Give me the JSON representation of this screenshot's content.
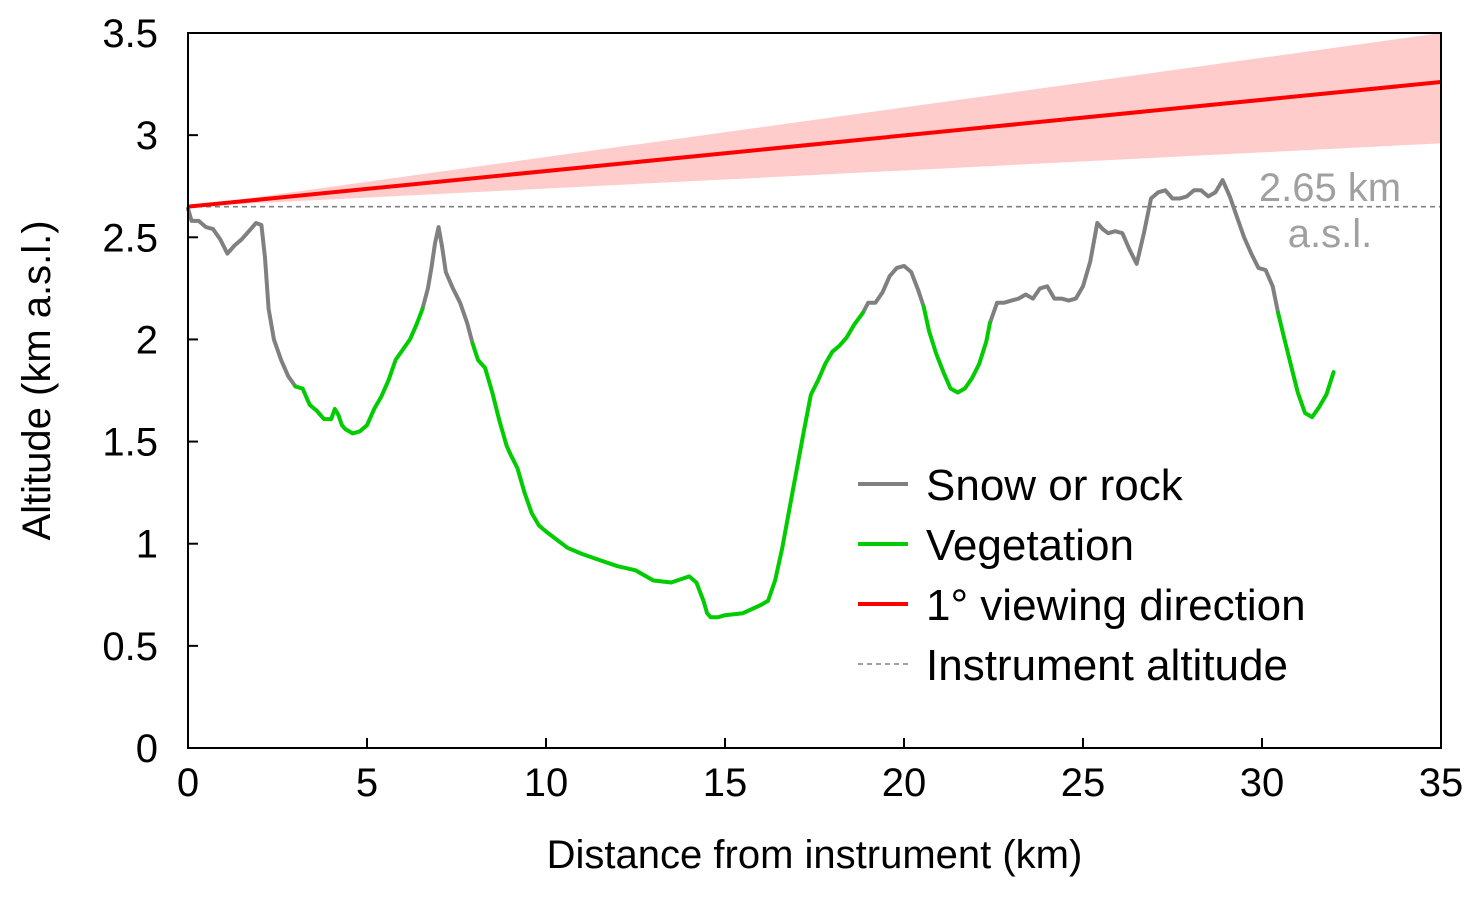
{
  "chart_data": {
    "type": "line",
    "title": "",
    "xlabel": "Distance from instrument (km)",
    "ylabel": "Altitude (km a.s.l.)",
    "xlim": [
      0,
      35
    ],
    "ylim": [
      0,
      3.5
    ],
    "xticks": [
      "0",
      "5",
      "10",
      "15",
      "20",
      "25",
      "30",
      "35"
    ],
    "yticks": [
      "0",
      "0.5",
      "1",
      "1.5",
      "2",
      "2.5",
      "3",
      "3.5"
    ],
    "grid": false,
    "legend_position": "lower-right",
    "legend": [
      {
        "label": "Snow or rock",
        "color": "#808080",
        "style": "solid"
      },
      {
        "label": "Vegetation",
        "color": "#00cc00",
        "style": "solid"
      },
      {
        "label": "1° viewing direction",
        "color": "#ff0000",
        "style": "solid"
      },
      {
        "label": "Instrument altitude",
        "color": "#808080",
        "style": "dashed"
      }
    ],
    "annotation": {
      "line1": "2.65 km",
      "line2": "a.s.l.",
      "color": "#a0a0a0"
    },
    "instrument_altitude": 2.65,
    "viewing_direction": {
      "x": [
        0,
        35
      ],
      "y": [
        2.65,
        3.26
      ],
      "band_upper": [
        2.65,
        3.5
      ],
      "band_lower": [
        2.65,
        2.96
      ],
      "line_color": "#ff0000",
      "band_color": "#ffcccc"
    },
    "series": [
      {
        "name": "Snow or rock",
        "color": "#808080",
        "segments": [
          {
            "x": [
              0.0,
              0.1,
              0.3,
              0.5,
              0.7,
              0.9,
              1.1,
              1.3,
              1.5,
              1.7,
              1.9,
              2.05,
              2.15,
              2.25,
              2.4,
              2.6,
              2.8,
              3.0
            ],
            "y": [
              2.64,
              2.58,
              2.58,
              2.55,
              2.54,
              2.49,
              2.42,
              2.46,
              2.49,
              2.53,
              2.57,
              2.56,
              2.4,
              2.15,
              2.0,
              1.9,
              1.82,
              1.77
            ]
          },
          {
            "x": [
              6.55,
              6.7,
              6.8,
              6.9,
              7.0,
              7.1,
              7.2,
              7.4,
              7.6,
              7.8,
              7.95
            ],
            "y": [
              2.15,
              2.25,
              2.35,
              2.47,
              2.55,
              2.45,
              2.33,
              2.25,
              2.18,
              2.08,
              1.98
            ]
          },
          {
            "x": [
              18.85,
              19.0,
              19.2,
              19.4,
              19.6,
              19.8,
              20.0,
              20.2,
              20.4,
              20.55
            ],
            "y": [
              2.13,
              2.18,
              2.18,
              2.23,
              2.31,
              2.35,
              2.36,
              2.33,
              2.24,
              2.16
            ]
          },
          {
            "x": [
              22.4,
              22.6,
              22.8,
              23.0,
              23.2,
              23.4,
              23.6,
              23.8,
              24.0,
              24.2,
              24.4,
              24.6,
              24.8,
              25.0,
              25.2,
              25.4,
              25.55,
              25.7,
              25.9,
              26.1,
              26.3,
              26.5,
              26.7,
              26.9,
              27.1,
              27.3,
              27.5,
              27.7,
              27.9,
              28.1,
              28.3,
              28.5,
              28.7,
              28.9,
              29.1,
              29.3,
              29.5,
              29.7,
              29.9,
              30.1,
              30.3,
              30.45
            ],
            "y": [
              2.08,
              2.18,
              2.18,
              2.19,
              2.2,
              2.22,
              2.2,
              2.25,
              2.26,
              2.2,
              2.2,
              2.19,
              2.2,
              2.26,
              2.38,
              2.57,
              2.54,
              2.52,
              2.53,
              2.52,
              2.44,
              2.37,
              2.52,
              2.69,
              2.72,
              2.73,
              2.69,
              2.69,
              2.7,
              2.73,
              2.73,
              2.7,
              2.72,
              2.78,
              2.7,
              2.6,
              2.5,
              2.42,
              2.35,
              2.34,
              2.26,
              2.13
            ]
          }
        ]
      },
      {
        "name": "Vegetation",
        "color": "#00cc00",
        "segments": [
          {
            "x": [
              3.0,
              3.2,
              3.4,
              3.6,
              3.8,
              4.0,
              4.1,
              4.2,
              4.3,
              4.4,
              4.6,
              4.8,
              5.0,
              5.2,
              5.4,
              5.6,
              5.8,
              6.0,
              6.2,
              6.4,
              6.55
            ],
            "y": [
              1.77,
              1.76,
              1.68,
              1.65,
              1.61,
              1.61,
              1.66,
              1.63,
              1.58,
              1.56,
              1.54,
              1.55,
              1.58,
              1.66,
              1.72,
              1.8,
              1.9,
              1.95,
              2.0,
              2.08,
              2.15
            ]
          },
          {
            "x": [
              7.95,
              8.1,
              8.3,
              8.5,
              8.7,
              8.9,
              9.0,
              9.2,
              9.4,
              9.6,
              9.8,
              10.0,
              10.3,
              10.6,
              11.0,
              11.5,
              12.0,
              12.5,
              13.0,
              13.5,
              14.0,
              14.2,
              14.4,
              14.5,
              14.6,
              14.8,
              15.0,
              15.5,
              16.0,
              16.2,
              16.4,
              16.6,
              16.8,
              17.0,
              17.2,
              17.4,
              17.6,
              17.8,
              18.0,
              18.2,
              18.4,
              18.6,
              18.85
            ],
            "y": [
              1.98,
              1.9,
              1.86,
              1.74,
              1.6,
              1.48,
              1.44,
              1.37,
              1.25,
              1.15,
              1.09,
              1.06,
              1.02,
              0.98,
              0.95,
              0.92,
              0.89,
              0.87,
              0.82,
              0.81,
              0.84,
              0.81,
              0.72,
              0.66,
              0.64,
              0.64,
              0.65,
              0.66,
              0.7,
              0.72,
              0.82,
              0.98,
              1.17,
              1.36,
              1.55,
              1.73,
              1.8,
              1.88,
              1.94,
              1.97,
              2.01,
              2.07,
              2.13
            ]
          },
          {
            "x": [
              20.55,
              20.7,
              20.9,
              21.1,
              21.3,
              21.5,
              21.7,
              21.9,
              22.1,
              22.3,
              22.4
            ],
            "y": [
              2.16,
              2.04,
              1.93,
              1.84,
              1.76,
              1.74,
              1.76,
              1.81,
              1.88,
              1.99,
              2.08
            ]
          },
          {
            "x": [
              30.45,
              30.6,
              30.8,
              31.0,
              31.2,
              31.4,
              31.6,
              31.8,
              32.0
            ],
            "y": [
              2.13,
              2.02,
              1.88,
              1.74,
              1.64,
              1.62,
              1.67,
              1.73,
              1.84
            ]
          }
        ]
      }
    ]
  }
}
